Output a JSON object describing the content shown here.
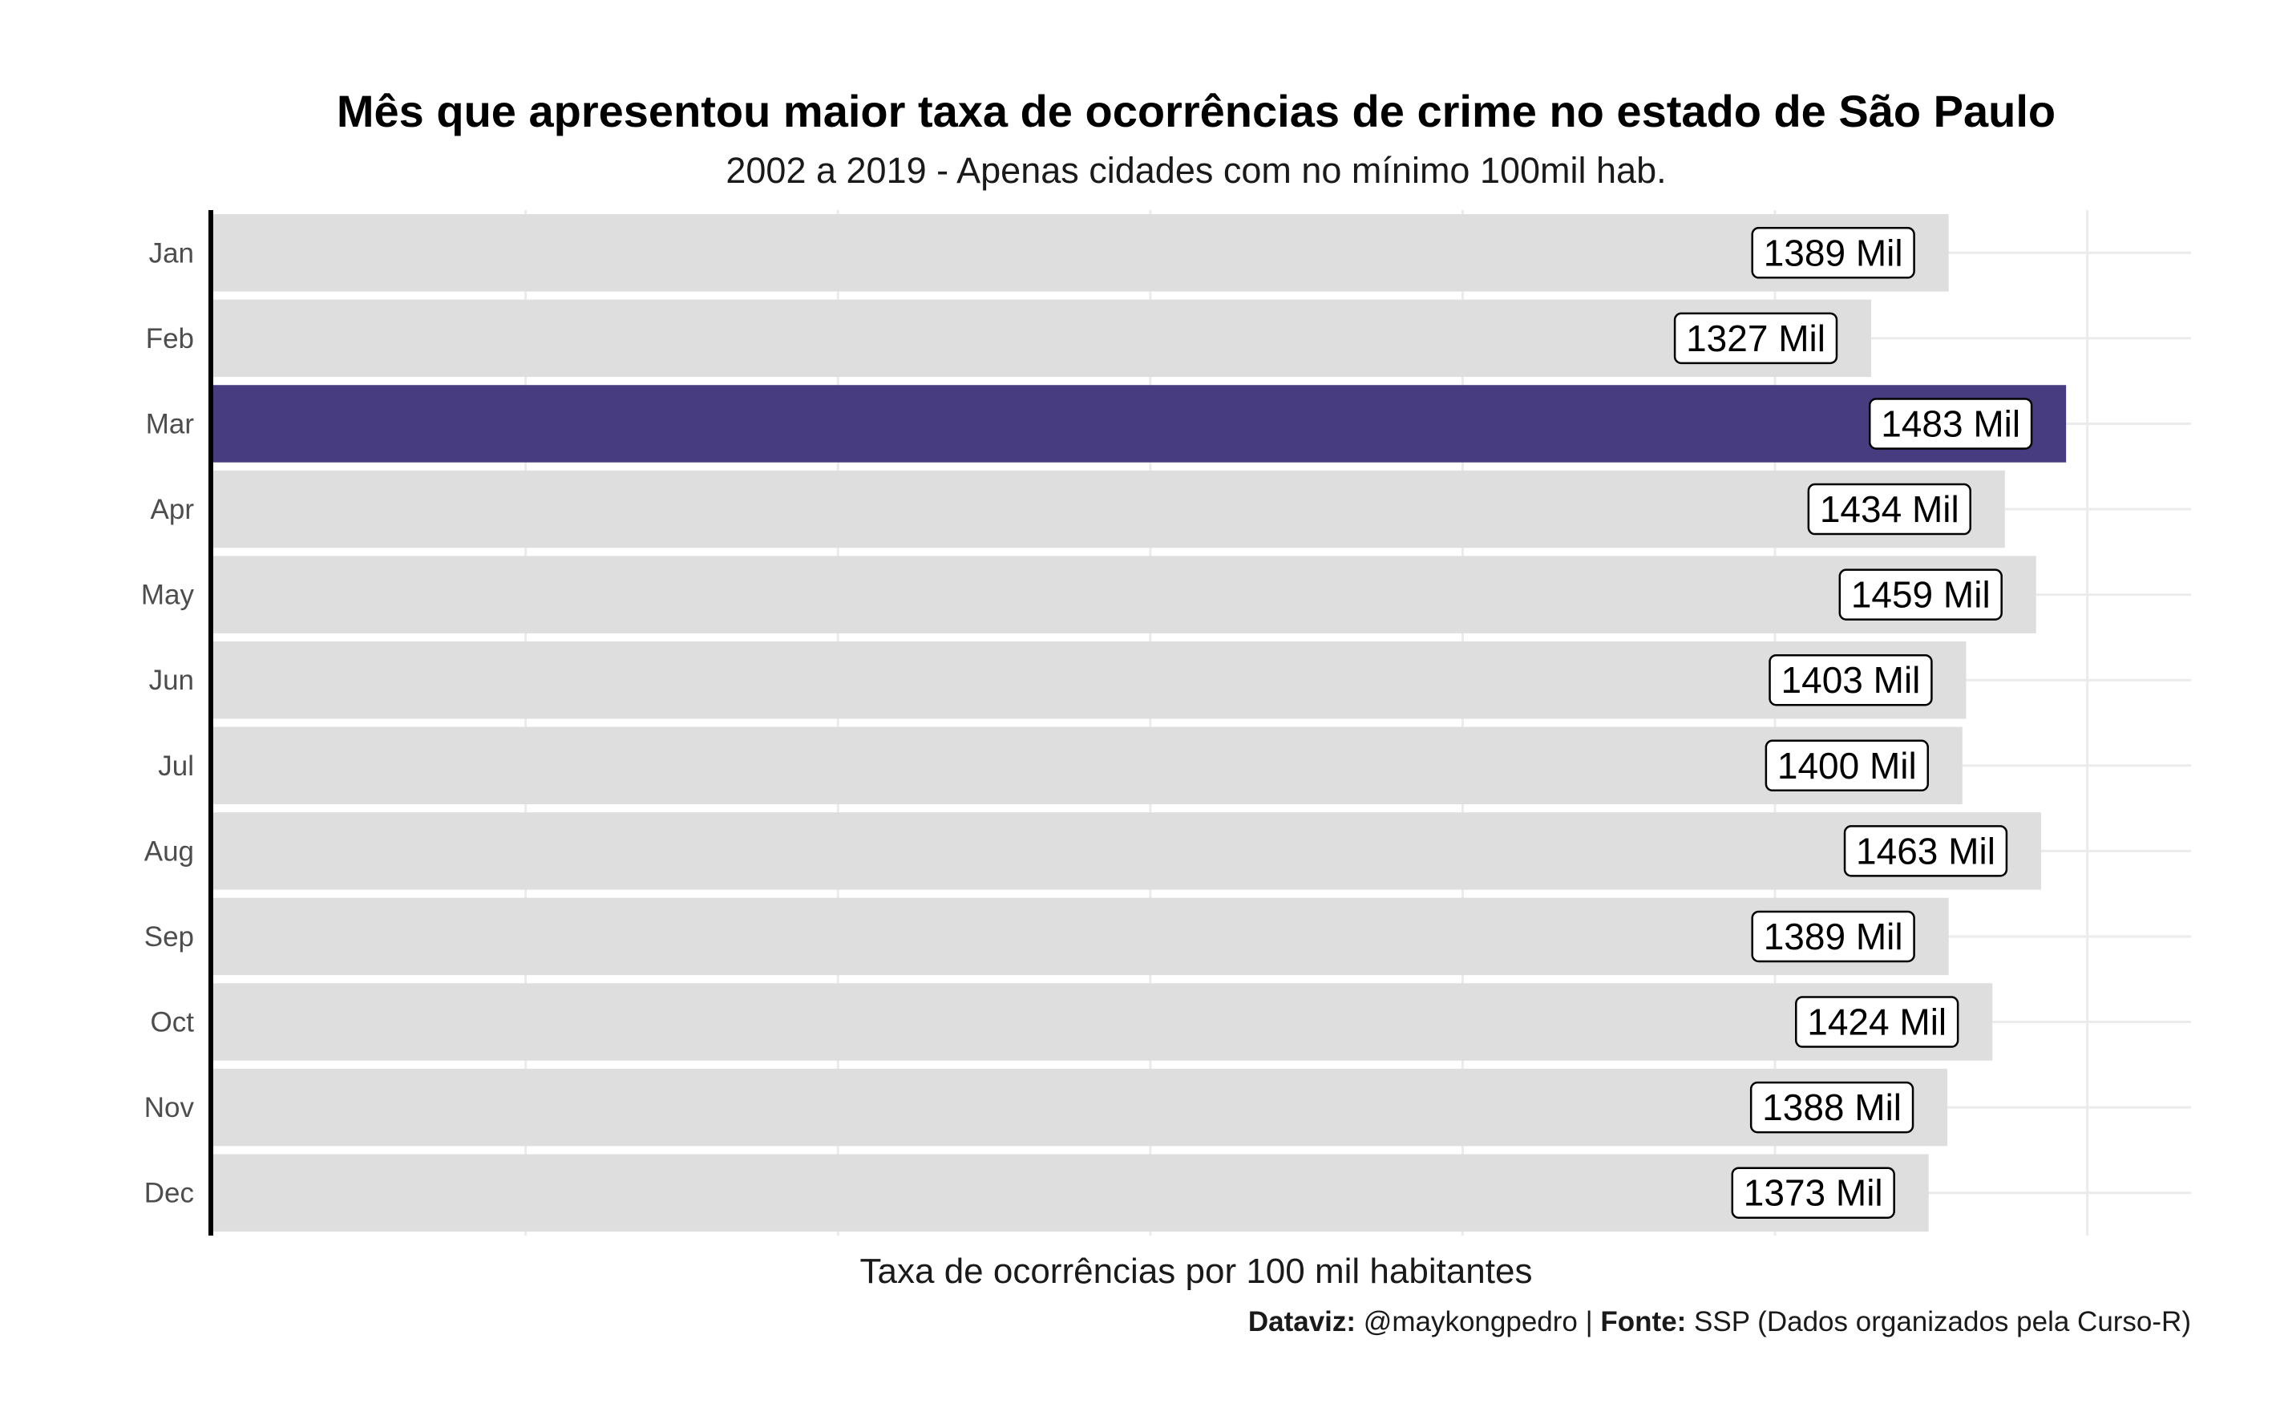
{
  "chart_data": {
    "type": "bar",
    "orientation": "horizontal",
    "title": "Mês que apresentou maior taxa de ocorrências de crime no estado de São Paulo",
    "subtitle": "2002 a 2019 - Apenas cidades com no mínimo 100mil hab.",
    "xlabel": "Taxa de ocorrências por 100 mil habitantes",
    "ylabel": "",
    "categories": [
      "Jan",
      "Feb",
      "Mar",
      "Apr",
      "May",
      "Jun",
      "Jul",
      "Aug",
      "Sep",
      "Oct",
      "Nov",
      "Dec"
    ],
    "values": [
      1389,
      1327,
      1483,
      1434,
      1459,
      1403,
      1400,
      1463,
      1389,
      1424,
      1388,
      1373
    ],
    "data_labels": [
      "1389 Mil",
      "1327 Mil",
      "1483 Mil",
      "1434 Mil",
      "1459 Mil",
      "1403 Mil",
      "1400 Mil",
      "1463 Mil",
      "1389 Mil",
      "1424 Mil",
      "1388 Mil",
      "1373 Mil"
    ],
    "highlight_category": "Mar",
    "xlim": [
      0,
      1583
    ],
    "grid": true,
    "legend": "none",
    "colors": {
      "highlight": "#483c80",
      "bar": "#dedede",
      "grid": "#ebebeb",
      "axis_line": "#000000",
      "background": "#ffffff"
    }
  },
  "caption": {
    "dataviz_label": "Dataviz:",
    "dataviz_value": " @maykongpedro | ",
    "source_label": "Fonte:",
    "source_value": " SSP (Dados organizados pela Curso-R)"
  }
}
